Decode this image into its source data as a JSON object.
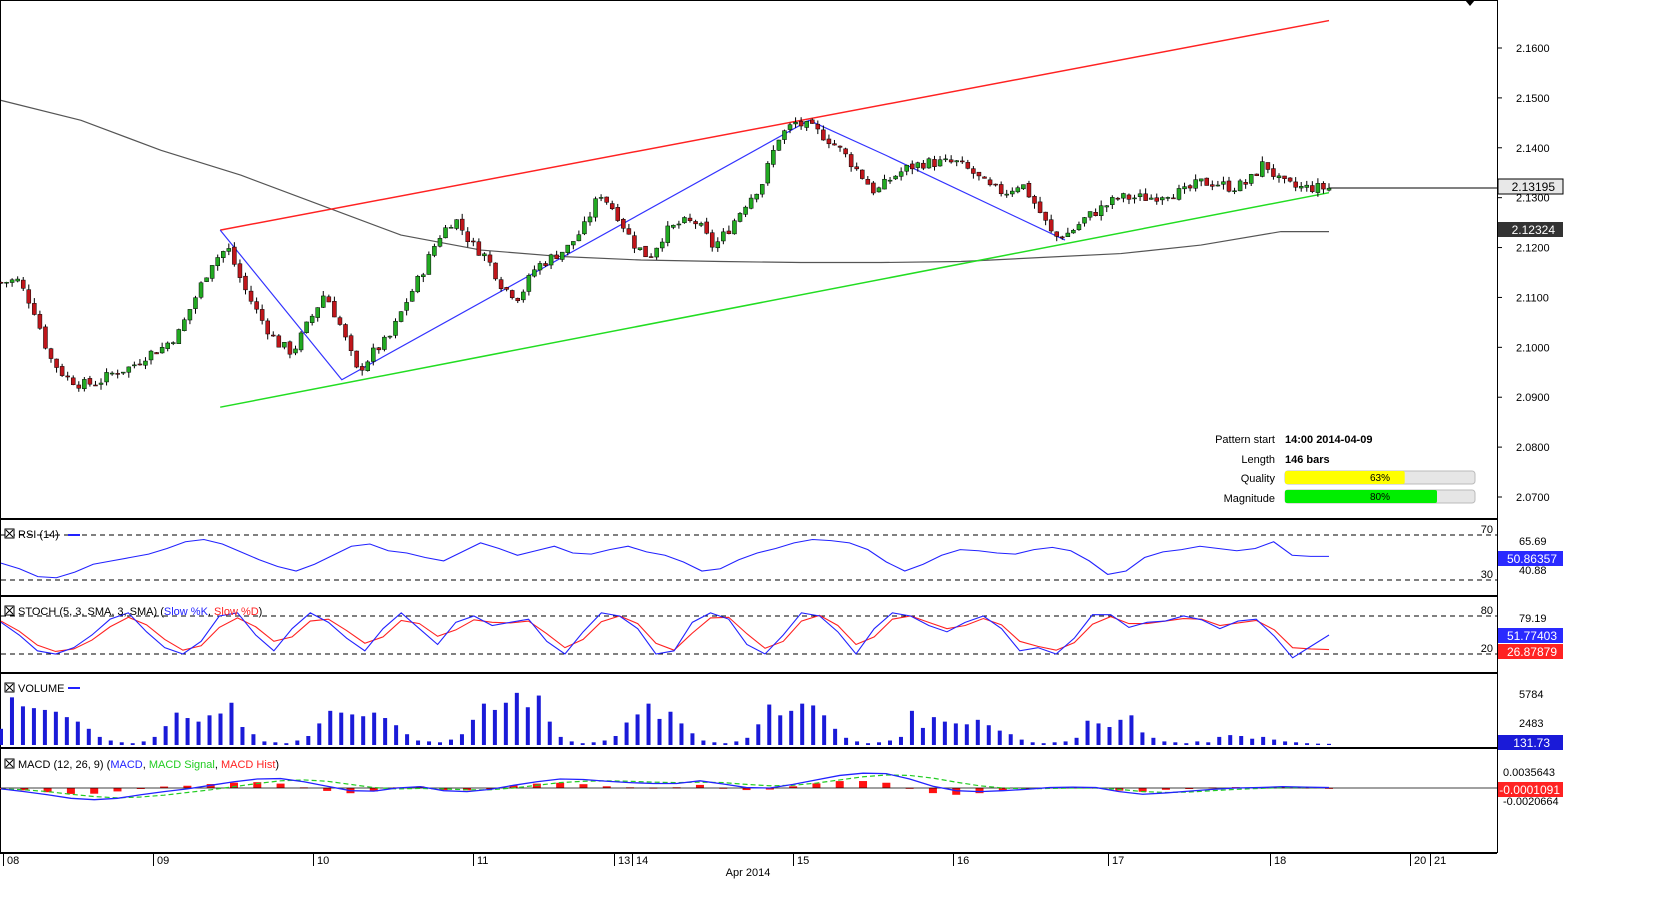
{
  "colors": {
    "background": "#ffffff",
    "bull_candle": "#22aa22",
    "bear_candle": "#c0161b",
    "resistance_line": "#ff2222",
    "support_line": "#22dd22",
    "pattern_line": "#3333ff",
    "moving_average": "#555555",
    "rsi_line": "#2222ff",
    "stoch_k": "#2222ff",
    "stoch_d": "#ff2222",
    "volume_bar": "#1a1ad8",
    "macd_line": "#2222ff",
    "macd_signal": "#22cc22",
    "macd_hist": "#ff1111",
    "quality_fill": "#ffff00",
    "magnitude_fill": "#00ee00"
  },
  "price_panel": {
    "y_ticks": [
      "2.1600",
      "2.1500",
      "2.1400",
      "2.1300",
      "2.1200",
      "2.1100",
      "2.1000",
      "2.0900",
      "2.0800",
      "2.0700"
    ],
    "current_price_label": "2.13195",
    "ma_price_label": "2.12324",
    "pattern_info": {
      "pattern_start_label": "Pattern start",
      "pattern_start_value": "14:00 2014-04-09",
      "length_label": "Length",
      "length_value": "146 bars",
      "quality_label": "Quality",
      "quality_value": "63%",
      "quality_fraction": 0.63,
      "magnitude_label": "Magnitude",
      "magnitude_value": "80%",
      "magnitude_fraction": 0.8
    }
  },
  "rsi_panel": {
    "title": "RSI (14)",
    "level_high": "70",
    "level_low": "30",
    "tick_high": "65.69",
    "tick_low": "40.88",
    "value_label": "50.86357"
  },
  "stoch_panel": {
    "title_prefix": "STOCH (5, 3, SMA, 3, SMA) (",
    "k_name": "Slow %K",
    "separator": ", ",
    "d_name": "Slow %D",
    "title_suffix": ")",
    "level_high": "80",
    "level_low": "20",
    "tick_high": "79.19",
    "k_value_label": "51.77403",
    "d_value_label": "26.87879"
  },
  "volume_panel": {
    "title": "VOLUME",
    "tick_high": "5784",
    "tick_mid": "2483",
    "value_label": "131.73"
  },
  "macd_panel": {
    "title_prefix": "MACD (12, 26, 9) (",
    "macd_name": "MACD",
    "separator": ", ",
    "signal_name": "MACD Signal",
    "hist_name": "MACD Hist",
    "title_suffix": ")",
    "tick_high": "0.0035643",
    "tick_low": "-0.0020664",
    "value_label": "-0.0001091"
  },
  "x_axis": {
    "day_labels": [
      "08",
      "09",
      "10",
      "11",
      "13",
      "14",
      "15",
      "16",
      "17",
      "18",
      "20",
      "21"
    ],
    "month_label": "Apr 2014"
  },
  "chart_data": {
    "type": "candlestick",
    "y_range": [
      2.064,
      2.168
    ],
    "trendlines": {
      "resistance": [
        [
          13.7,
          2.1235
        ],
        [
          83,
          2.1655
        ]
      ],
      "support": [
        [
          13.7,
          2.088
        ],
        [
          83,
          2.131
        ]
      ],
      "zigzag": [
        [
          13.7,
          2.1235
        ],
        [
          21.3,
          2.0935
        ],
        [
          50.5,
          2.1455
        ],
        [
          55.3,
          2.1385
        ],
        [
          66.5,
          2.1215
        ]
      ]
    },
    "moving_average_200": [
      [
        0,
        2.1495
      ],
      [
        5,
        2.1455
      ],
      [
        10,
        2.1395
      ],
      [
        15,
        2.1345
      ],
      [
        20,
        2.1285
      ],
      [
        25,
        2.1225
      ],
      [
        30,
        2.1195
      ],
      [
        35,
        2.1182
      ],
      [
        40,
        2.1175
      ],
      [
        45,
        2.1172
      ],
      [
        50,
        2.117
      ],
      [
        55,
        2.117
      ],
      [
        60,
        2.1172
      ],
      [
        65,
        2.118
      ],
      [
        70,
        2.1188
      ],
      [
        75,
        2.1205
      ],
      [
        80,
        2.1232
      ],
      [
        83,
        2.1232
      ]
    ],
    "price_path": [
      2.113,
      2.1135,
      2.108,
      2.098,
      2.094,
      2.0925,
      2.093,
      2.095,
      2.096,
      2.0985,
      2.1,
      2.103,
      2.11,
      2.117,
      2.12,
      2.112,
      2.106,
      2.101,
      2.099,
      2.105,
      2.111,
      2.104,
      2.095,
      2.099,
      2.102,
      2.109,
      2.115,
      2.122,
      2.126,
      2.121,
      2.118,
      2.112,
      2.11,
      2.116,
      2.118,
      2.12,
      2.124,
      2.131,
      2.127,
      2.121,
      2.118,
      2.123,
      2.125,
      2.125,
      2.12,
      2.124,
      2.129,
      2.133,
      2.142,
      2.145,
      2.144,
      2.142,
      2.139,
      2.135,
      2.131,
      2.134,
      2.136,
      2.137,
      2.137,
      2.137,
      2.135,
      2.132,
      2.131,
      2.133,
      2.128,
      2.122,
      2.123,
      2.126,
      2.128,
      2.13,
      2.13,
      2.13,
      2.131,
      2.131,
      2.133,
      2.133,
      2.132,
      2.133,
      2.137,
      2.133,
      2.132,
      2.132,
      2.1319
    ],
    "rsi": [
      45,
      40,
      33,
      32,
      37,
      44,
      47,
      50,
      53,
      58,
      64,
      66,
      62,
      55,
      48,
      42,
      38,
      44,
      52,
      60,
      62,
      56,
      54,
      50,
      47,
      55,
      63,
      58,
      52,
      56,
      60,
      54,
      53,
      57,
      60,
      55,
      52,
      46,
      38,
      40,
      48,
      54,
      58,
      63,
      66,
      65,
      63,
      57,
      46,
      38,
      44,
      52,
      57,
      56,
      54,
      53,
      57,
      59,
      56,
      47,
      35,
      38,
      50,
      55,
      57,
      60,
      58,
      56,
      58,
      64,
      52,
      51,
      51
    ],
    "stoch_k": [
      70,
      50,
      25,
      20,
      30,
      50,
      75,
      85,
      55,
      30,
      20,
      40,
      80,
      85,
      50,
      25,
      60,
      85,
      70,
      45,
      25,
      60,
      85,
      60,
      35,
      70,
      80,
      65,
      70,
      75,
      40,
      20,
      55,
      85,
      80,
      60,
      20,
      25,
      70,
      85,
      75,
      35,
      20,
      50,
      85,
      80,
      55,
      20,
      60,
      85,
      80,
      65,
      55,
      70,
      80,
      60,
      25,
      30,
      20,
      45,
      82,
      82,
      62,
      70,
      72,
      80,
      74,
      60,
      72,
      75,
      48,
      14,
      32,
      50
    ],
    "stoch_d": [
      72,
      56,
      34,
      24,
      28,
      42,
      63,
      78,
      66,
      43,
      26,
      33,
      62,
      77,
      63,
      40,
      47,
      72,
      75,
      57,
      37,
      47,
      73,
      68,
      48,
      58,
      74,
      70,
      69,
      72,
      52,
      30,
      43,
      71,
      80,
      68,
      37,
      26,
      53,
      77,
      78,
      52,
      29,
      40,
      72,
      81,
      65,
      35,
      47,
      75,
      80,
      70,
      60,
      65,
      76,
      66,
      40,
      32,
      26,
      38,
      67,
      79,
      68,
      68,
      72,
      76,
      75,
      65,
      69,
      73,
      58,
      30,
      28,
      27
    ],
    "volume": [
      1800,
      5300,
      4300,
      4100,
      3900,
      3700,
      3100,
      2600,
      1800,
      900,
      500,
      300,
      200,
      400,
      900,
      2100,
      3600,
      3000,
      2600,
      3300,
      3500,
      4700,
      2000,
      1200,
      400,
      300,
      200,
      500,
      1000,
      2400,
      3800,
      3600,
      3400,
      3200,
      3600,
      3000,
      2200,
      1200,
      500,
      400,
      300,
      600,
      1200,
      2800,
      4600,
      3900,
      4700,
      5800,
      4200,
      5500,
      2600,
      900,
      400,
      200,
      300,
      500,
      1000,
      2500,
      3400,
      4600,
      2900,
      3700,
      2400,
      1300,
      500,
      300,
      200,
      400,
      800,
      2300,
      4500,
      3300,
      3800,
      4600,
      4400,
      3300,
      1800,
      800,
      400,
      200,
      300,
      500,
      900,
      3800,
      1900,
      3100,
      2600,
      2400,
      2300,
      2800,
      2200,
      1600,
      1200,
      600,
      300,
      200,
      300,
      400,
      800,
      2700,
      2400,
      2000,
      2800,
      3300,
      1400,
      800,
      400,
      300,
      200,
      400,
      300,
      900,
      1100,
      1000,
      700,
      900,
      600,
      400,
      300,
      200,
      150,
      130
    ],
    "macd": [
      -0.0002,
      -0.0008,
      -0.0015,
      -0.0023,
      -0.0026,
      -0.0023,
      -0.0015,
      -0.0008,
      -0.0002,
      0.0006,
      0.0014,
      0.002,
      0.0021,
      0.0014,
      0.0004,
      -0.0006,
      -0.0007,
      0.0,
      0.0003,
      -0.0006,
      -0.0008,
      -0.0003,
      0.0006,
      0.0014,
      0.002,
      0.0019,
      0.0015,
      0.0012,
      0.001,
      0.001,
      0.0016,
      0.0009,
      0.0001,
      0.0,
      0.0008,
      0.0018,
      0.0028,
      0.0033,
      0.0032,
      0.002,
      0.0004,
      -0.0006,
      -0.0008,
      -0.0006,
      -0.0003,
      0.0001,
      0.0002,
      0.0001,
      -0.0008,
      -0.0014,
      -0.0011,
      -0.0007,
      -0.0003,
      0.0,
      0.0001,
      0.0003,
      0.0002,
      0.0001
    ],
    "macd_signal": [
      -0.0002,
      -0.0004,
      -0.0008,
      -0.0014,
      -0.0019,
      -0.0022,
      -0.002,
      -0.0016,
      -0.001,
      -0.0004,
      0.0003,
      0.001,
      0.0016,
      0.0018,
      0.0015,
      0.0008,
      0.0001,
      -0.0002,
      -0.0001,
      -0.0002,
      -0.0004,
      -0.0004,
      0.0,
      0.0006,
      0.0012,
      0.0015,
      0.0016,
      0.0015,
      0.0013,
      0.0012,
      0.0013,
      0.0012,
      0.0008,
      0.0005,
      0.0006,
      0.0011,
      0.0018,
      0.0025,
      0.0029,
      0.0028,
      0.0022,
      0.0013,
      0.0005,
      0.0,
      -0.0002,
      -0.0001,
      0.0,
      0.0,
      -0.0003,
      -0.0008,
      -0.001,
      -0.0009,
      -0.0006,
      -0.0003,
      -0.0001,
      0.0001,
      0.0001,
      0.0001
    ]
  }
}
